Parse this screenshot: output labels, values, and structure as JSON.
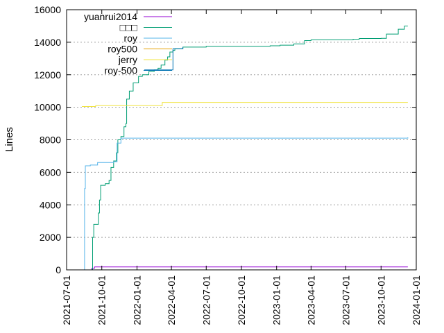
{
  "chart_data": {
    "type": "line",
    "title": "",
    "xlabel": "",
    "ylabel": "Lines",
    "xlim": [
      "2021-07-01",
      "2024-01-01"
    ],
    "ylim": [
      0,
      16000
    ],
    "grid": "dotted horizontal at y ticks",
    "legend_position": "top-left",
    "y_ticks": [
      0,
      2000,
      4000,
      6000,
      8000,
      10000,
      12000,
      14000,
      16000
    ],
    "y_tick_labels": [
      "0",
      "2000",
      "4000",
      "6000",
      "8000",
      "10000",
      "12000",
      "14000",
      "16000"
    ],
    "x_ticks": [
      "2021-07-01",
      "2021-10-01",
      "2022-01-01",
      "2022-04-01",
      "2022-07-01",
      "2022-10-01",
      "2023-01-01",
      "2023-04-01",
      "2023-07-01",
      "2023-10-01",
      "2024-01-01"
    ],
    "x_tick_labels": [
      "2021-07-01",
      "2021-10-01",
      "2022-01-01",
      "2022-04-01",
      "2022-07-01",
      "2022-10-01",
      "2023-01-01",
      "2023-04-01",
      "2023-07-01",
      "2023-10-01",
      "2024-01-01"
    ],
    "series": [
      {
        "name": "yuanrui2014",
        "color": "#9400d3",
        "points": [
          [
            "2021-08-25",
            0
          ],
          [
            "2021-09-05",
            100
          ],
          [
            "2021-09-12",
            180
          ],
          [
            "2023-12-10",
            180
          ]
        ]
      },
      {
        "name": "□□□",
        "color": "#009e73",
        "points": [
          [
            "2021-09-05",
            0
          ],
          [
            "2021-09-07",
            2000
          ],
          [
            "2021-09-10",
            2800
          ],
          [
            "2021-09-18",
            2800
          ],
          [
            "2021-09-22",
            3500
          ],
          [
            "2021-09-25",
            4300
          ],
          [
            "2021-09-28",
            5200
          ],
          [
            "2021-10-10",
            5300
          ],
          [
            "2021-10-20",
            5500
          ],
          [
            "2021-10-25",
            6300
          ],
          [
            "2021-11-01",
            6700
          ],
          [
            "2021-11-08",
            7200
          ],
          [
            "2021-11-12",
            8000
          ],
          [
            "2021-11-20",
            8200
          ],
          [
            "2021-11-28",
            8800
          ],
          [
            "2021-12-03",
            9000
          ],
          [
            "2021-12-05",
            10500
          ],
          [
            "2021-12-12",
            11000
          ],
          [
            "2021-12-22",
            11500
          ],
          [
            "2022-01-05",
            11900
          ],
          [
            "2022-01-15",
            12000
          ],
          [
            "2022-02-01",
            12200
          ],
          [
            "2022-02-15",
            12300
          ],
          [
            "2022-02-25",
            12400
          ],
          [
            "2022-03-05",
            12600
          ],
          [
            "2022-03-15",
            12900
          ],
          [
            "2022-03-22",
            13100
          ],
          [
            "2022-03-28",
            13400
          ],
          [
            "2022-04-05",
            13500
          ],
          [
            "2022-04-10",
            13600
          ],
          [
            "2022-05-01",
            13700
          ],
          [
            "2022-07-01",
            13750
          ],
          [
            "2022-12-15",
            13780
          ],
          [
            "2023-01-10",
            13820
          ],
          [
            "2023-02-15",
            13900
          ],
          [
            "2023-03-15",
            14100
          ],
          [
            "2023-04-01",
            14150
          ],
          [
            "2023-07-20",
            14180
          ],
          [
            "2023-08-05",
            14230
          ],
          [
            "2023-10-01",
            14240
          ],
          [
            "2023-10-15",
            14500
          ],
          [
            "2023-11-15",
            14800
          ],
          [
            "2023-12-01",
            15000
          ],
          [
            "2023-12-10",
            15000
          ]
        ]
      },
      {
        "name": "roy",
        "color": "#56b4e9",
        "points": [
          [
            "2021-08-15",
            0
          ],
          [
            "2021-08-17",
            5000
          ],
          [
            "2021-08-19",
            6400
          ],
          [
            "2021-09-01",
            6450
          ],
          [
            "2021-09-20",
            6600
          ],
          [
            "2021-11-01",
            6650
          ],
          [
            "2021-11-10",
            7800
          ],
          [
            "2021-11-20",
            8100
          ],
          [
            "2023-12-10",
            8150
          ]
        ]
      },
      {
        "name": "roy500",
        "color": "#e69f00",
        "points": [
          [
            "2022-03-20",
            0
          ],
          [
            "2023-12-10",
            0
          ]
        ]
      },
      {
        "name": "jerry",
        "color": "#f0e442",
        "points": [
          [
            "2021-08-10",
            10050
          ],
          [
            "2021-09-15",
            10100
          ],
          [
            "2022-03-05",
            10100
          ],
          [
            "2022-03-08",
            10300
          ],
          [
            "2023-12-10",
            10300
          ]
        ]
      },
      {
        "name": "roy-500",
        "color": "#0072b2",
        "points": [
          [
            "2022-01-20",
            12300
          ],
          [
            "2022-03-25",
            12300
          ],
          [
            "2022-04-05",
            13600
          ],
          [
            "2022-05-01",
            13700
          ]
        ]
      }
    ]
  }
}
